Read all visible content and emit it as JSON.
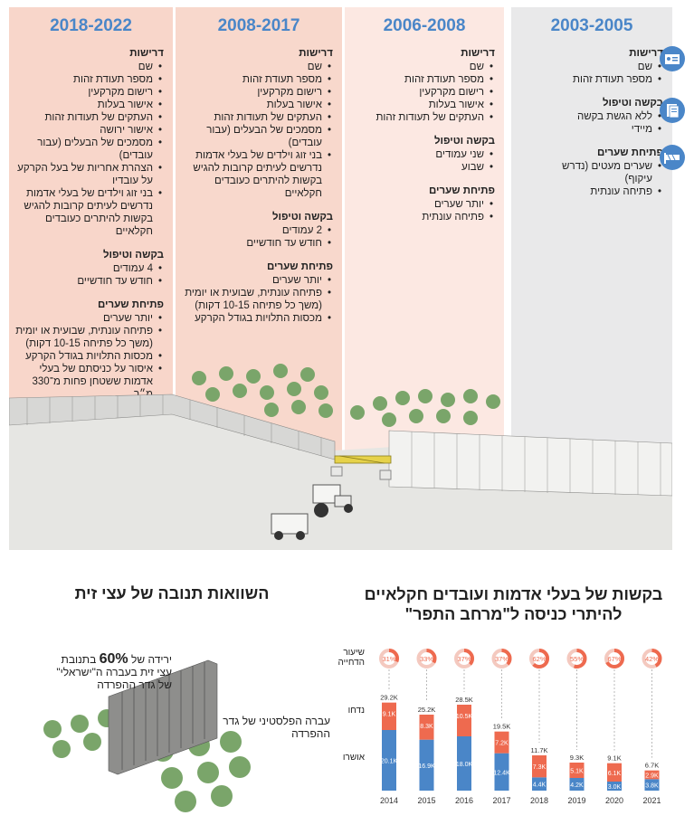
{
  "colors": {
    "accent": "#4a86c8",
    "red": "#ee6a4f",
    "blue": "#4a86c8"
  },
  "periods": [
    {
      "year": "2018-2022",
      "sections": [
        {
          "head": "דרישות",
          "items": [
            "שם",
            "מספר תעודת זהות",
            "רישום מקרקעין",
            "אישור בעלות",
            "העתקים של תעודות זהות",
            "אישור ירושה",
            "מסמכים של הבעלים (עבור עובדים)",
            "הצהרת אחריות של בעל הקרקע על עובדיו",
            "בני זוג וילדים של בעלי אדמות נדרשים לעיתים קרובות להגיש בקשות להיתרים כעובדים חקלאיים"
          ]
        },
        {
          "head": "בקשה וטיפול",
          "items": [
            "4 עמודים",
            "חודש עד חודשיים"
          ]
        },
        {
          "head": "פתיחת שערים",
          "items": [
            "יותר שערים",
            "פתיחה עונתית, שבועית או יומית (משך כל פתיחה 10-15 דקות)",
            "מכסות התלויות בגודל הקרקע",
            "איסור על כניסתם של בעלי אדמות ששטחן פחות מ־330 מ״ר"
          ]
        }
      ]
    },
    {
      "year": "2008-2017",
      "sections": [
        {
          "head": "דרישות",
          "items": [
            "שם",
            "מספר תעודת זהות",
            "רישום מקרקעין",
            "אישור בעלות",
            "העתקים של תעודות זהות",
            "מסמכים של הבעלים (עבור עובדים)",
            "בני זוג וילדים של בעלי אדמות נדרשים לעיתים קרובות להגיש בקשות להיתרים כעובדים חקלאיים"
          ]
        },
        {
          "head": "בקשה וטיפול",
          "items": [
            "2 עמודים",
            "חודש עד חודשיים"
          ]
        },
        {
          "head": "פתיחת שערים",
          "items": [
            "יותר שערים",
            "פתיחה עונתית, שבועית או יומית (משך כל פתיחה 10-15 דקות)",
            "מכסות התלויות בגודל הקרקע"
          ]
        }
      ]
    },
    {
      "year": "2006-2008",
      "sections": [
        {
          "head": "דרישות",
          "items": [
            "שם",
            "מספר תעודת זהות",
            "רישום מקרקעין",
            "אישור בעלות",
            "העתקים של תעודות זהות"
          ]
        },
        {
          "head": "בקשה וטיפול",
          "items": [
            "שני עמודים",
            "שבוע"
          ]
        },
        {
          "head": "פתיחת שערים",
          "items": [
            "יותר שערים",
            "פתיחה עונתית"
          ]
        }
      ]
    },
    {
      "year": "2003-2005",
      "sections": [
        {
          "head": "דרישות",
          "icon": "id-card-icon",
          "items": [
            "שם",
            "מספר תעודת זהות"
          ]
        },
        {
          "head": "בקשה וטיפול",
          "icon": "documents-icon",
          "items": [
            "ללא הגשת בקשה",
            "מיידי"
          ]
        },
        {
          "head": "פתיחת שערים",
          "icon": "gate-icon",
          "items": [
            "שערים מעטים (נדרש עיקוף)",
            "פתיחה עונתית"
          ]
        }
      ]
    }
  ],
  "olive": {
    "title": "השוואות תנובה של עצי זית",
    "text1_pre": "ירידה של",
    "text1_pct": "60%",
    "text1_post": "בתנובת עצי זית בעברה ה\"ישראלי\" של גדר ההפרדה",
    "text2": "עברה הפלסטיני של גדר ההפרדה"
  },
  "chart_data": {
    "type": "bar",
    "title": "בקשות של בעלי אדמות ועובדים חקלאיים להיתרי כניסה ל\"מרחב התפר\"",
    "row_labels": {
      "refusal": "שיעור הדחייה",
      "rejected": "נדחו",
      "approved": "אושרו"
    },
    "categories": [
      "2014",
      "2015",
      "2016",
      "2017",
      "2018",
      "2019",
      "2020",
      "2021"
    ],
    "totals": [
      "29.2K",
      "25.2K",
      "28.5K",
      "19.5K",
      "11.7K",
      "9.3K",
      "9.1K",
      "6.7K"
    ],
    "total_values": [
      29.2,
      25.2,
      28.5,
      19.5,
      11.7,
      9.3,
      9.1,
      6.7
    ],
    "series": [
      {
        "name": "אושרו",
        "labels": [
          "20.1K",
          "16.9K",
          "18.0K",
          "12.4K",
          "4.4K",
          "4.2K",
          "3.0K",
          "3.8K"
        ],
        "values": [
          20.1,
          16.9,
          18.0,
          12.4,
          4.4,
          4.2,
          3.0,
          3.8
        ]
      },
      {
        "name": "נדחו",
        "labels": [
          "9.1K",
          "8.3K",
          "10.5K",
          "7.2K",
          "7.3K",
          "5.1K",
          "6.1K",
          "2.9K"
        ],
        "values": [
          9.1,
          8.3,
          10.5,
          7.2,
          7.3,
          5.1,
          6.1,
          2.9
        ]
      }
    ],
    "refusal_rates": [
      "31%",
      "33%",
      "37%",
      "37%",
      "62%",
      "55%",
      "67%",
      "42%"
    ],
    "refusal_values": [
      31,
      33,
      37,
      37,
      62,
      55,
      67,
      42
    ]
  }
}
